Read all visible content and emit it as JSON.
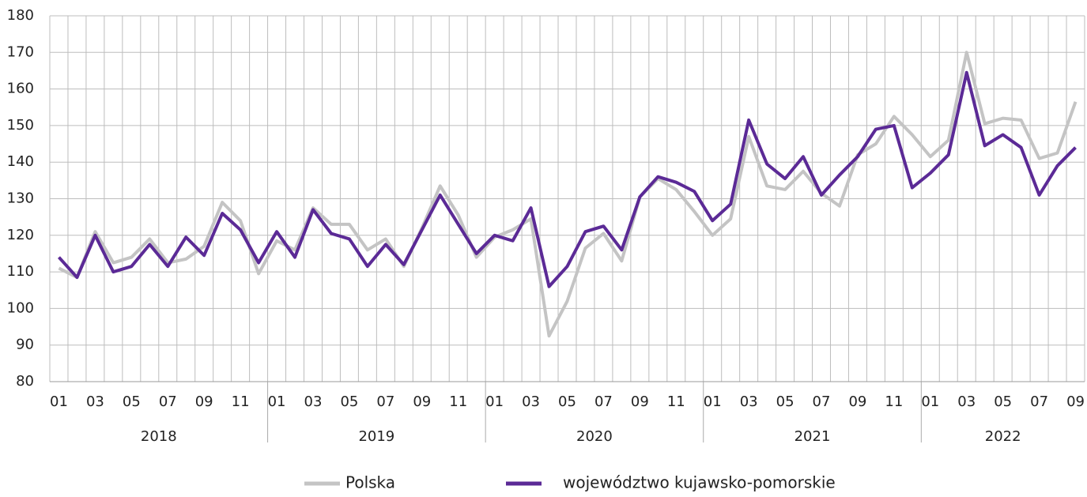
{
  "chart_data": {
    "type": "line",
    "categories": [
      "01",
      null,
      "03",
      null,
      "05",
      null,
      "07",
      null,
      "09",
      null,
      "11",
      null,
      "01",
      null,
      "03",
      null,
      "05",
      null,
      "07",
      null,
      "09",
      null,
      "11",
      null,
      "01",
      null,
      "03",
      null,
      "05",
      null,
      "07",
      null,
      "09",
      null,
      "11",
      null,
      "01",
      null,
      "03",
      null,
      "05",
      null,
      "07",
      null,
      "09",
      null,
      "11",
      null,
      "01",
      null,
      "03",
      null,
      "05",
      null,
      "07",
      null,
      "09"
    ],
    "groups": [
      {
        "name": "2018",
        "count": 12
      },
      {
        "name": "2019",
        "count": 12
      },
      {
        "name": "2020",
        "count": 12
      },
      {
        "name": "2021",
        "count": 12
      },
      {
        "name": "2022",
        "count": 9
      }
    ],
    "series": [
      {
        "name": "Polska",
        "color": "#c4c4c4",
        "values": [
          111,
          108.5,
          121,
          112.5,
          114,
          119,
          112.5,
          113.5,
          117,
          129,
          124,
          109.5,
          118.5,
          116,
          127.5,
          123,
          123,
          116,
          119,
          111.5,
          122,
          133.5,
          125.5,
          114,
          119.5,
          121.5,
          124.5,
          92.5,
          102,
          116.5,
          120.5,
          113,
          130.5,
          135.5,
          132.5,
          126.5,
          120,
          124.5,
          147,
          133.5,
          132.5,
          137.5,
          131.5,
          128,
          142,
          145,
          152.5,
          147.5,
          141.5,
          146,
          170,
          150.5,
          152,
          151.5,
          141,
          142.5,
          156.5
        ]
      },
      {
        "name": "województwo kujawsko-pomorskie",
        "color": "#5b2a96",
        "values": [
          114,
          108.5,
          120,
          110,
          111.5,
          117.5,
          111.5,
          119.5,
          114.5,
          126,
          121.5,
          112.5,
          121,
          114,
          127,
          120.5,
          119,
          111.5,
          117.5,
          112,
          121.5,
          131,
          123,
          115,
          120,
          118.5,
          127.5,
          106,
          111.5,
          121,
          122.5,
          116,
          130.5,
          136,
          134.5,
          132,
          124,
          128.5,
          151.5,
          139.5,
          135.5,
          141.5,
          131,
          136.5,
          141.5,
          149,
          150,
          133,
          137,
          142,
          164.5,
          144.5,
          147.5,
          144,
          131,
          139,
          144
        ]
      }
    ],
    "ylim": [
      80,
      180
    ],
    "yticks": [
      80,
      90,
      100,
      110,
      120,
      130,
      140,
      150,
      160,
      170,
      180
    ],
    "grid": true,
    "legend": "bottom"
  }
}
